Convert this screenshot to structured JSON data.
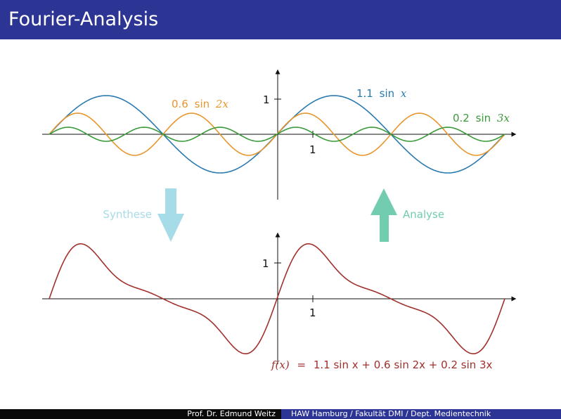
{
  "header": {
    "title": "Fourier-Analysis"
  },
  "footer": {
    "author": "Prof. Dr. Edmund Weitz",
    "affiliation": "HAW Hamburg / Fakultät DMI / Dept. Medientechnik"
  },
  "colors": {
    "header_bg": "#2c3594",
    "sine1": "#2a7ab0",
    "sine2": "#e8962e",
    "sine3": "#3a9a3a",
    "sum": "#a0302c",
    "synthese_arrow": "#a6dbe8",
    "analyse_arrow": "#72ccb0"
  },
  "top_plot": {
    "tick_y": "1",
    "tick_x": "1",
    "label_sine1": {
      "coef": "1.1",
      "fn": "sin",
      "var": "x"
    },
    "label_sine2": {
      "coef": "0.6",
      "fn": "sin",
      "var": "2x"
    },
    "label_sine3": {
      "coef": "0.2",
      "fn": "sin",
      "var": "3x"
    }
  },
  "bottom_plot": {
    "tick_y": "1",
    "tick_x": "1",
    "formula": {
      "lhs": "f(x)",
      "eq": "=",
      "rhs": "1.1 sin x + 0.6 sin 2x + 0.2 sin 3x"
    }
  },
  "arrows": {
    "synthese": "Synthese",
    "analyse": "Analyse"
  },
  "chart_data": [
    {
      "type": "line",
      "x_domain": [
        -6.2832,
        6.2832
      ],
      "series": [
        {
          "name": "1.1 sin x",
          "amplitude": 1.1,
          "frequency": 1
        },
        {
          "name": "0.6 sin 2x",
          "amplitude": 0.6,
          "frequency": 2
        },
        {
          "name": "0.2 sin 3x",
          "amplitude": 0.2,
          "frequency": 3
        }
      ]
    },
    {
      "type": "line",
      "x_domain": [
        -6.2832,
        6.2832
      ],
      "series": [
        {
          "name": "f(x) = 1.1 sin x + 0.6 sin 2x + 0.2 sin 3x",
          "terms": [
            {
              "amplitude": 1.1,
              "frequency": 1
            },
            {
              "amplitude": 0.6,
              "frequency": 2
            },
            {
              "amplitude": 0.2,
              "frequency": 3
            }
          ]
        }
      ]
    }
  ]
}
